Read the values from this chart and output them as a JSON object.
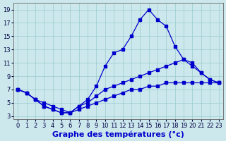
{
  "bg_color": "#cce8ec",
  "grid_color": "#99cccc",
  "line_color": "#0000cc",
  "xlim": [
    -0.5,
    23.5
  ],
  "ylim": [
    2.5,
    20.0
  ],
  "xticks": [
    0,
    1,
    2,
    3,
    4,
    5,
    6,
    7,
    8,
    9,
    10,
    11,
    12,
    13,
    14,
    15,
    16,
    17,
    18,
    19,
    20,
    21,
    22,
    23
  ],
  "yticks": [
    3,
    5,
    7,
    9,
    11,
    13,
    15,
    17,
    19
  ],
  "line1_x": [
    0,
    1,
    2,
    3,
    4,
    5,
    6,
    7,
    8,
    9,
    10,
    11,
    12,
    13,
    14,
    15,
    16,
    17,
    18,
    19,
    20,
    21,
    22,
    23
  ],
  "line1_y": [
    7.0,
    6.5,
    5.5,
    5.0,
    4.5,
    4.0,
    3.5,
    4.5,
    5.5,
    7.5,
    10.5,
    12.5,
    13.0,
    15.0,
    17.5,
    19.0,
    17.5,
    16.5,
    13.5,
    11.5,
    10.5,
    9.5,
    8.5,
    8.0
  ],
  "line2_x": [
    0,
    1,
    2,
    3,
    4,
    5,
    6,
    7,
    8,
    9,
    10,
    11,
    12,
    13,
    14,
    15,
    16,
    17,
    18,
    19,
    20,
    21,
    22,
    23
  ],
  "line2_y": [
    7.0,
    6.5,
    5.5,
    4.5,
    4.0,
    3.5,
    3.5,
    4.5,
    5.0,
    6.0,
    7.0,
    7.5,
    8.0,
    8.5,
    9.0,
    9.5,
    10.0,
    10.5,
    11.0,
    11.5,
    11.0,
    9.5,
    8.5,
    8.0
  ],
  "line3_x": [
    0,
    1,
    2,
    3,
    4,
    5,
    6,
    7,
    8,
    9,
    10,
    11,
    12,
    13,
    14,
    15,
    16,
    17,
    18,
    19,
    20,
    21,
    22,
    23
  ],
  "line3_y": [
    7.0,
    6.5,
    5.5,
    4.5,
    4.0,
    3.5,
    3.5,
    4.0,
    4.5,
    5.0,
    5.5,
    6.0,
    6.5,
    7.0,
    7.0,
    7.5,
    7.5,
    8.0,
    8.0,
    8.0,
    8.0,
    8.0,
    8.0,
    8.0
  ],
  "xlabel": "Graphe des températures (°c)",
  "tick_fontsize": 6.0,
  "xlabel_fontsize": 8.0
}
